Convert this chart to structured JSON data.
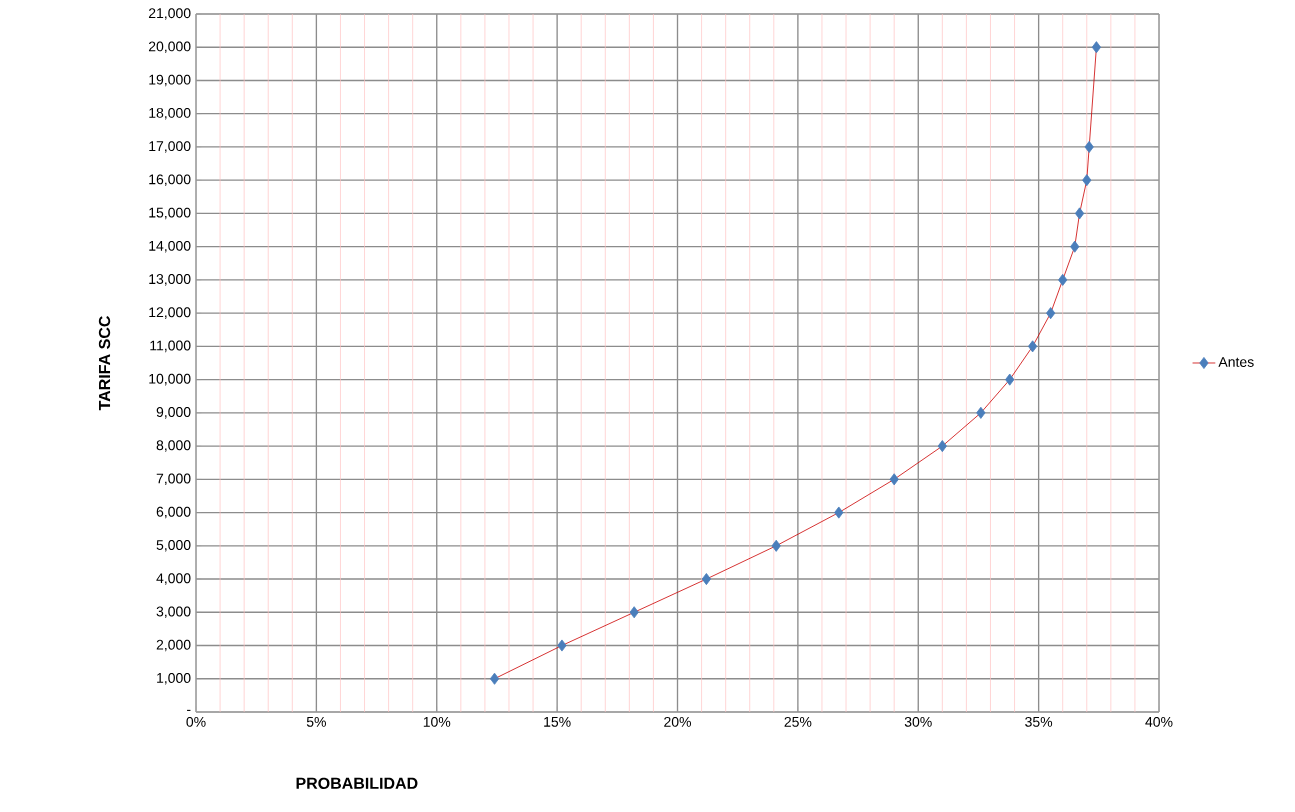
{
  "chart_data": {
    "type": "line",
    "xlabel": "PROBABILIDAD",
    "ylabel": "TARIFA  SCC",
    "series": [
      {
        "name": "Antes",
        "color": "#4a7ebb",
        "x": [
          0.124,
          0.152,
          0.182,
          0.212,
          0.241,
          0.267,
          0.29,
          0.31,
          0.326,
          0.338,
          0.3475,
          0.355,
          0.36,
          0.365,
          0.367,
          0.37,
          0.371,
          0.374
        ],
        "values": [
          1000,
          2000,
          3000,
          4000,
          5000,
          6000,
          7000,
          8000,
          9000,
          10000,
          11000,
          12000,
          13000,
          14000,
          15000,
          16000,
          17000,
          20000
        ]
      }
    ],
    "xlim": [
      0,
      0.4
    ],
    "xticks": [
      {
        "value": 0,
        "label": "0%"
      },
      {
        "value": 0.01,
        "label": null
      },
      {
        "value": 0.02,
        "label": null
      },
      {
        "value": 0.03,
        "label": null
      },
      {
        "value": 0.04,
        "label": null
      },
      {
        "value": 0.05,
        "label": "5%"
      },
      {
        "value": 0.06,
        "label": null
      },
      {
        "value": 0.07,
        "label": null
      },
      {
        "value": 0.08,
        "label": null
      },
      {
        "value": 0.09,
        "label": null
      },
      {
        "value": 0.1,
        "label": "10%"
      },
      {
        "value": 0.11,
        "label": null
      },
      {
        "value": 0.12,
        "label": null
      },
      {
        "value": 0.13,
        "label": null
      },
      {
        "value": 0.14,
        "label": null
      },
      {
        "value": 0.15,
        "label": "15%"
      },
      {
        "value": 0.16,
        "label": null
      },
      {
        "value": 0.17,
        "label": null
      },
      {
        "value": 0.18,
        "label": null
      },
      {
        "value": 0.19,
        "label": null
      },
      {
        "value": 0.2,
        "label": "20%"
      },
      {
        "value": 0.21,
        "label": null
      },
      {
        "value": 0.22,
        "label": null
      },
      {
        "value": 0.23,
        "label": null
      },
      {
        "value": 0.24,
        "label": null
      },
      {
        "value": 0.25,
        "label": "25%"
      },
      {
        "value": 0.26,
        "label": null
      },
      {
        "value": 0.27,
        "label": null
      },
      {
        "value": 0.28,
        "label": null
      },
      {
        "value": 0.29,
        "label": null
      },
      {
        "value": 0.3,
        "label": "30%"
      },
      {
        "value": 0.31,
        "label": null
      },
      {
        "value": 0.32,
        "label": null
      },
      {
        "value": 0.33,
        "label": null
      },
      {
        "value": 0.34,
        "label": null
      },
      {
        "value": 0.35,
        "label": "35%"
      },
      {
        "value": 0.36,
        "label": null
      },
      {
        "value": 0.37,
        "label": null
      },
      {
        "value": 0.38,
        "label": null
      },
      {
        "value": 0.39,
        "label": null
      },
      {
        "value": 0.4,
        "label": "40%"
      }
    ],
    "ylim": [
      0,
      21000
    ],
    "yticks": [
      {
        "value": 0,
        "label": "-"
      },
      {
        "value": 1000,
        "label": "1,000"
      },
      {
        "value": 2000,
        "label": "2,000"
      },
      {
        "value": 3000,
        "label": "3,000"
      },
      {
        "value": 4000,
        "label": "4,000"
      },
      {
        "value": 5000,
        "label": "5,000"
      },
      {
        "value": 6000,
        "label": "6,000"
      },
      {
        "value": 7000,
        "label": "7,000"
      },
      {
        "value": 8000,
        "label": "8,000"
      },
      {
        "value": 9000,
        "label": "9,000"
      },
      {
        "value": 10000,
        "label": "10,000"
      },
      {
        "value": 11000,
        "label": "11,000"
      },
      {
        "value": 12000,
        "label": "12,000"
      },
      {
        "value": 13000,
        "label": "13,000"
      },
      {
        "value": 14000,
        "label": "14,000"
      },
      {
        "value": 15000,
        "label": "15,000"
      },
      {
        "value": 16000,
        "label": "16,000"
      },
      {
        "value": 17000,
        "label": "17,000"
      },
      {
        "value": 18000,
        "label": "18,000"
      },
      {
        "value": 19000,
        "label": "19,000"
      },
      {
        "value": 20000,
        "label": "20,000"
      },
      {
        "value": 21000,
        "label": "21,000"
      }
    ],
    "grid": true,
    "legend": "right",
    "marker": "diamond",
    "line_style": "solid"
  }
}
